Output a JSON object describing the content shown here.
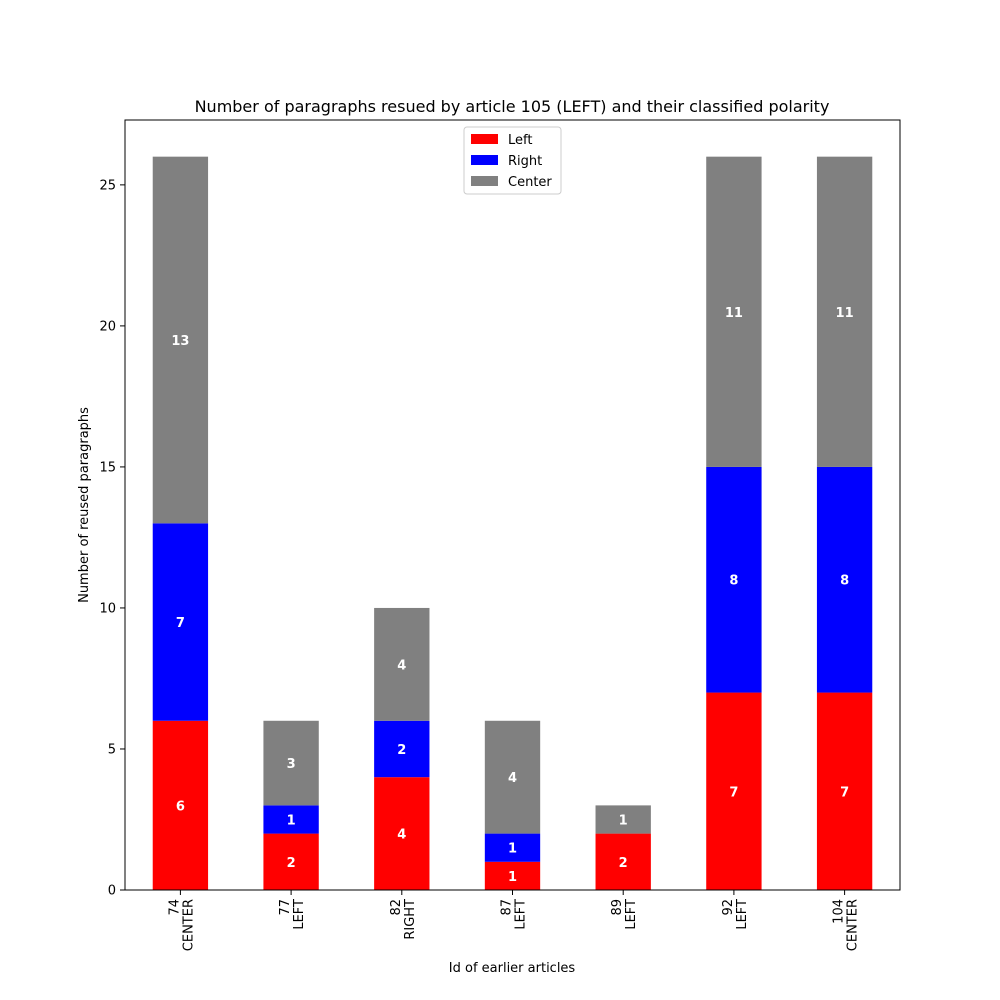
{
  "chart_data": {
    "type": "bar",
    "stacked": true,
    "title": "Number of paragraphs resued by article 105 (LEFT) and their classified polarity",
    "xlabel": "Id of earlier articles",
    "ylabel": "Number of reused paragraphs",
    "ylim": [
      0,
      27.3
    ],
    "yticks": [
      0,
      5,
      10,
      15,
      20,
      25
    ],
    "grid": false,
    "legend_position": "top-center",
    "categories": [
      {
        "id": "74",
        "polarity": "CENTER"
      },
      {
        "id": "77",
        "polarity": "LEFT"
      },
      {
        "id": "82",
        "polarity": "RIGHT"
      },
      {
        "id": "87",
        "polarity": "LEFT"
      },
      {
        "id": "89",
        "polarity": "LEFT"
      },
      {
        "id": "92",
        "polarity": "LEFT"
      },
      {
        "id": "104",
        "polarity": "CENTER"
      }
    ],
    "series": [
      {
        "name": "Left",
        "color": "#ff0000",
        "values": [
          6,
          2,
          4,
          1,
          2,
          7,
          7
        ]
      },
      {
        "name": "Right",
        "color": "#0000ff",
        "values": [
          7,
          1,
          2,
          1,
          0,
          8,
          8
        ]
      },
      {
        "name": "Center",
        "color": "#808080",
        "values": [
          13,
          3,
          4,
          4,
          1,
          11,
          11
        ]
      }
    ]
  }
}
